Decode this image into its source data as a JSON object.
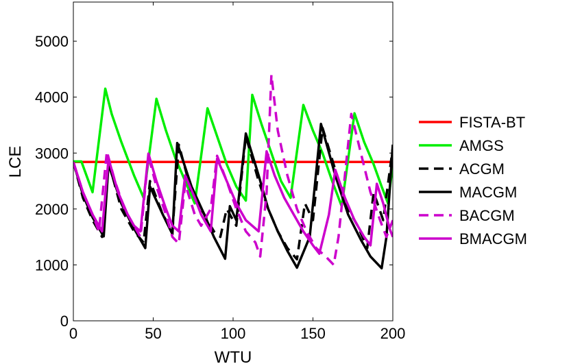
{
  "chart_data": {
    "type": "line",
    "title": "",
    "xlabel": "WTU",
    "ylabel": "LCE",
    "xlim": [
      0,
      200
    ],
    "ylim": [
      0,
      5700
    ],
    "xticks": [
      0,
      50,
      100,
      150,
      200
    ],
    "yticks": [
      0,
      1000,
      2000,
      3000,
      4000,
      5000
    ],
    "legend_position": "right",
    "grid": false,
    "series": [
      {
        "name": "FISTA-BT",
        "color": "#ff0000",
        "dash": "solid",
        "points": [
          [
            0,
            2840
          ],
          [
            200,
            2840
          ]
        ]
      },
      {
        "name": "AMGS",
        "color": "#00ee00",
        "dash": "solid",
        "points": [
          [
            0,
            2850
          ],
          [
            5,
            2850
          ],
          [
            12,
            2300
          ],
          [
            20,
            4150
          ],
          [
            24,
            3700
          ],
          [
            30,
            3200
          ],
          [
            38,
            2600
          ],
          [
            44,
            2200
          ],
          [
            52,
            3970
          ],
          [
            58,
            3400
          ],
          [
            64,
            2900
          ],
          [
            70,
            2500
          ],
          [
            76,
            2100
          ],
          [
            84,
            3800
          ],
          [
            90,
            3300
          ],
          [
            96,
            2800
          ],
          [
            102,
            2400
          ],
          [
            108,
            2150
          ],
          [
            112,
            4040
          ],
          [
            118,
            3500
          ],
          [
            124,
            3000
          ],
          [
            130,
            2500
          ],
          [
            136,
            2200
          ],
          [
            144,
            3860
          ],
          [
            150,
            3400
          ],
          [
            156,
            3000
          ],
          [
            162,
            2500
          ],
          [
            168,
            2050
          ],
          [
            176,
            3710
          ],
          [
            182,
            3200
          ],
          [
            188,
            2800
          ],
          [
            193,
            2400
          ],
          [
            197,
            2100
          ],
          [
            200,
            2800
          ]
        ]
      },
      {
        "name": "ACGM",
        "color": "#000000",
        "dash": "dashed",
        "points": [
          [
            0,
            2840
          ],
          [
            6,
            2200
          ],
          [
            12,
            1800
          ],
          [
            18,
            1500
          ],
          [
            22,
            2850
          ],
          [
            30,
            2000
          ],
          [
            38,
            1600
          ],
          [
            44,
            1400
          ],
          [
            48,
            2500
          ],
          [
            56,
            1900
          ],
          [
            62,
            1600
          ],
          [
            66,
            3150
          ],
          [
            74,
            2300
          ],
          [
            82,
            1900
          ],
          [
            88,
            1600
          ],
          [
            92,
            1500
          ],
          [
            96,
            2000
          ],
          [
            102,
            1700
          ],
          [
            108,
            3300
          ],
          [
            116,
            2500
          ],
          [
            122,
            2000
          ],
          [
            128,
            1600
          ],
          [
            134,
            1300
          ],
          [
            140,
            1100
          ],
          [
            145,
            2100
          ],
          [
            150,
            1800
          ],
          [
            156,
            3450
          ],
          [
            164,
            2700
          ],
          [
            172,
            2000
          ],
          [
            178,
            1700
          ],
          [
            184,
            1300
          ],
          [
            188,
            2300
          ],
          [
            194,
            1800
          ],
          [
            200,
            3100
          ]
        ]
      },
      {
        "name": "MACGM",
        "color": "#000000",
        "dash": "solid",
        "points": [
          [
            0,
            2840
          ],
          [
            6,
            2250
          ],
          [
            12,
            1850
          ],
          [
            19,
            1510
          ],
          [
            22,
            2800
          ],
          [
            30,
            2100
          ],
          [
            38,
            1650
          ],
          [
            45,
            1300
          ],
          [
            48,
            2400
          ],
          [
            56,
            1900
          ],
          [
            62,
            1550
          ],
          [
            65,
            3180
          ],
          [
            74,
            2400
          ],
          [
            82,
            1900
          ],
          [
            88,
            1500
          ],
          [
            95,
            1110
          ],
          [
            98,
            2050
          ],
          [
            102,
            1800
          ],
          [
            108,
            3350
          ],
          [
            116,
            2600
          ],
          [
            122,
            2000
          ],
          [
            128,
            1600
          ],
          [
            134,
            1250
          ],
          [
            140,
            950
          ],
          [
            148,
            1500
          ],
          [
            155,
            3520
          ],
          [
            164,
            2600
          ],
          [
            172,
            1900
          ],
          [
            180,
            1450
          ],
          [
            186,
            1150
          ],
          [
            193,
            940
          ],
          [
            196,
            1500
          ],
          [
            200,
            3150
          ]
        ]
      },
      {
        "name": "BACGM",
        "color": "#cc00cc",
        "dash": "dashed",
        "points": [
          [
            0,
            2840
          ],
          [
            6,
            2300
          ],
          [
            12,
            1900
          ],
          [
            16,
            1600
          ],
          [
            21,
            3030
          ],
          [
            26,
            2500
          ],
          [
            32,
            2000
          ],
          [
            38,
            1700
          ],
          [
            42,
            1500
          ],
          [
            47,
            2950
          ],
          [
            52,
            2400
          ],
          [
            58,
            1900
          ],
          [
            62,
            1500
          ],
          [
            66,
            1380
          ],
          [
            70,
            2450
          ],
          [
            76,
            1900
          ],
          [
            80,
            1700
          ],
          [
            86,
            2000
          ],
          [
            90,
            2950
          ],
          [
            96,
            2500
          ],
          [
            102,
            2000
          ],
          [
            108,
            1600
          ],
          [
            114,
            1400
          ],
          [
            117,
            1150
          ],
          [
            121,
            2300
          ],
          [
            124,
            4400
          ],
          [
            128,
            3400
          ],
          [
            134,
            2600
          ],
          [
            140,
            2000
          ],
          [
            146,
            1600
          ],
          [
            152,
            1300
          ],
          [
            158,
            1150
          ],
          [
            163,
            1000
          ],
          [
            166,
            1500
          ],
          [
            170,
            2600
          ],
          [
            174,
            3700
          ],
          [
            180,
            3000
          ],
          [
            186,
            2300
          ],
          [
            192,
            1800
          ],
          [
            196,
            1500
          ],
          [
            200,
            1800
          ]
        ]
      },
      {
        "name": "BMACGM",
        "color": "#cc00cc",
        "dash": "solid",
        "points": [
          [
            0,
            2840
          ],
          [
            6,
            2300
          ],
          [
            12,
            1900
          ],
          [
            18,
            1600
          ],
          [
            22,
            2900
          ],
          [
            28,
            2300
          ],
          [
            34,
            1900
          ],
          [
            38,
            1700
          ],
          [
            42,
            1600
          ],
          [
            47,
            2990
          ],
          [
            52,
            2500
          ],
          [
            58,
            2000
          ],
          [
            62,
            1700
          ],
          [
            66,
            1600
          ],
          [
            70,
            2600
          ],
          [
            76,
            2200
          ],
          [
            80,
            1900
          ],
          [
            86,
            1600
          ],
          [
            90,
            2900
          ],
          [
            96,
            2500
          ],
          [
            102,
            2100
          ],
          [
            108,
            1800
          ],
          [
            116,
            1600
          ],
          [
            121,
            3030
          ],
          [
            126,
            2600
          ],
          [
            132,
            2200
          ],
          [
            138,
            1900
          ],
          [
            144,
            1600
          ],
          [
            150,
            1350
          ],
          [
            154,
            1200
          ],
          [
            160,
            1900
          ],
          [
            164,
            2700
          ],
          [
            170,
            2200
          ],
          [
            176,
            1800
          ],
          [
            182,
            1500
          ],
          [
            186,
            1350
          ],
          [
            190,
            2450
          ],
          [
            194,
            2100
          ],
          [
            198,
            1650
          ],
          [
            200,
            1500
          ]
        ]
      }
    ]
  }
}
